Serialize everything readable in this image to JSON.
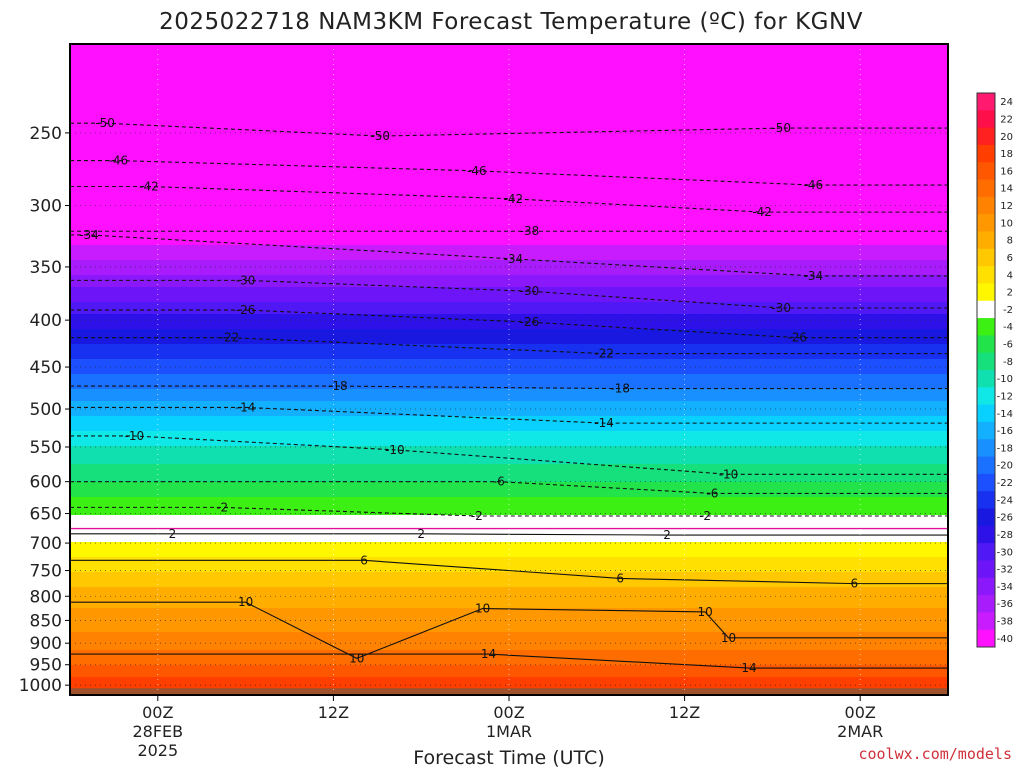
{
  "chart_data": {
    "type": "heatmap",
    "title": "2025022718 NAM3KM Forecast Temperature (ºC) for KGNV",
    "xlabel": "Forecast Time (UTC)",
    "credit": "coolwx.com/models",
    "pressure_levels": [
      250,
      300,
      350,
      400,
      450,
      500,
      550,
      600,
      650,
      700,
      750,
      800,
      850,
      900,
      950,
      1000
    ],
    "ylim": [
      1025,
      200
    ],
    "x_hours": [
      0,
      12,
      24,
      36,
      48
    ],
    "xlim": [
      -6,
      54
    ],
    "x_ticks": [
      {
        "hour": 0,
        "lines": [
          "00Z",
          "28FEB",
          "2025"
        ]
      },
      {
        "hour": 12,
        "lines": [
          "12Z"
        ]
      },
      {
        "hour": 24,
        "lines": [
          "00Z",
          "1MAR"
        ]
      },
      {
        "hour": 36,
        "lines": [
          "12Z"
        ]
      },
      {
        "hour": 48,
        "lines": [
          "00Z",
          "2MAR"
        ]
      }
    ],
    "temperature_profile": [
      {
        "p": 200,
        "t": -56
      },
      {
        "p": 250,
        "t": -50
      },
      {
        "p": 300,
        "t": -43
      },
      {
        "p": 350,
        "t": -35
      },
      {
        "p": 400,
        "t": -27
      },
      {
        "p": 450,
        "t": -21
      },
      {
        "p": 500,
        "t": -15
      },
      {
        "p": 550,
        "t": -10
      },
      {
        "p": 600,
        "t": -6
      },
      {
        "p": 650,
        "t": -2
      },
      {
        "p": 700,
        "t": 2
      },
      {
        "p": 750,
        "t": 6
      },
      {
        "p": 800,
        "t": 9
      },
      {
        "p": 850,
        "t": 11
      },
      {
        "p": 900,
        "t": 13
      },
      {
        "p": 950,
        "t": 16
      },
      {
        "p": 1000,
        "t": 19
      },
      {
        "p": 1025,
        "t": 20
      }
    ],
    "contour_labels": [
      {
        "text": "-50",
        "hour": -3.6,
        "p": 244
      },
      {
        "text": "-50",
        "hour": 15.2,
        "p": 252
      },
      {
        "text": "-50",
        "hour": 42.6,
        "p": 247
      },
      {
        "text": "-46",
        "hour": -2.7,
        "p": 268
      },
      {
        "text": "-46",
        "hour": 21.8,
        "p": 275
      },
      {
        "text": "-46",
        "hour": 44.8,
        "p": 285
      },
      {
        "text": "-42",
        "hour": -0.6,
        "p": 286
      },
      {
        "text": "-42",
        "hour": 24.3,
        "p": 295
      },
      {
        "text": "-42",
        "hour": 41.3,
        "p": 305
      },
      {
        "text": "-38",
        "hour": 25.4,
        "p": 320
      },
      {
        "text": "-34",
        "hour": -4.7,
        "p": 323
      },
      {
        "text": "-34",
        "hour": 24.3,
        "p": 343
      },
      {
        "text": "-34",
        "hour": 44.8,
        "p": 358
      },
      {
        "text": "-30",
        "hour": 6.0,
        "p": 362
      },
      {
        "text": "-30",
        "hour": 25.4,
        "p": 372
      },
      {
        "text": "-30",
        "hour": 42.6,
        "p": 388
      },
      {
        "text": "-26",
        "hour": 6.0,
        "p": 390
      },
      {
        "text": "-26",
        "hour": 25.4,
        "p": 402
      },
      {
        "text": "-26",
        "hour": 43.7,
        "p": 418
      },
      {
        "text": "-22",
        "hour": 4.9,
        "p": 418
      },
      {
        "text": "-22",
        "hour": 30.5,
        "p": 435
      },
      {
        "text": "-18",
        "hour": 12.3,
        "p": 472
      },
      {
        "text": "-18",
        "hour": 31.6,
        "p": 475
      },
      {
        "text": "-14",
        "hour": 6.0,
        "p": 498
      },
      {
        "text": "-14",
        "hour": 30.5,
        "p": 518
      },
      {
        "text": "-10",
        "hour": -1.6,
        "p": 535
      },
      {
        "text": "-10",
        "hour": 16.2,
        "p": 554
      },
      {
        "text": "-10",
        "hour": 39.0,
        "p": 589
      },
      {
        "text": "-6",
        "hour": 23.3,
        "p": 600
      },
      {
        "text": "-6",
        "hour": 37.9,
        "p": 618
      },
      {
        "text": "-2",
        "hour": 4.4,
        "p": 640
      },
      {
        "text": "-2",
        "hour": 21.8,
        "p": 654
      },
      {
        "text": "-2",
        "hour": 37.4,
        "p": 654
      },
      {
        "text": "2",
        "hour": 1.0,
        "p": 684
      },
      {
        "text": "2",
        "hour": 18.0,
        "p": 684
      },
      {
        "text": "2",
        "hour": 34.8,
        "p": 686
      },
      {
        "text": "6",
        "hour": 14.1,
        "p": 731
      },
      {
        "text": "6",
        "hour": 31.6,
        "p": 765
      },
      {
        "text": "6",
        "hour": 47.6,
        "p": 775
      },
      {
        "text": "10",
        "hour": 6.0,
        "p": 812
      },
      {
        "text": "10",
        "hour": 22.2,
        "p": 825
      },
      {
        "text": "10",
        "hour": 37.4,
        "p": 832
      },
      {
        "text": "10",
        "hour": 39.0,
        "p": 888
      },
      {
        "text": "10",
        "hour": 13.6,
        "p": 935
      },
      {
        "text": "14",
        "hour": 22.6,
        "p": 925
      },
      {
        "text": "14",
        "hour": 40.4,
        "p": 958
      }
    ],
    "colorbar_labels": [
      "24",
      "22",
      "20",
      "18",
      "16",
      "14",
      "12",
      "10",
      "8",
      "6",
      "4",
      "2",
      "-2",
      "-4",
      "-6",
      "-8",
      "-10",
      "-12",
      "-14",
      "-16",
      "-18",
      "-20",
      "-22",
      "-24",
      "-26",
      "-28",
      "-30",
      "-32",
      "-34",
      "-36",
      "-38",
      "-40"
    ],
    "colorbar_colors": [
      "#ff1a70",
      "#ff0f4a",
      "#ff2020",
      "#ff3e00",
      "#ff5600",
      "#ff6d00",
      "#ff8200",
      "#ff9800",
      "#ffae00",
      "#ffc800",
      "#ffe000",
      "#fff700",
      "#ffffff",
      "#3cf014",
      "#22e44a",
      "#16e07c",
      "#10e0b0",
      "#10e8e8",
      "#08d0ff",
      "#12b0ff",
      "#1890ff",
      "#1a70ff",
      "#1c50ff",
      "#1830f0",
      "#1818e0",
      "#2e10e8",
      "#5018f4",
      "#6e14f8",
      "#8a18fa",
      "#a81cfc",
      "#c81cfe",
      "#ff10ff"
    ],
    "surface_color": "#a0522d"
  }
}
